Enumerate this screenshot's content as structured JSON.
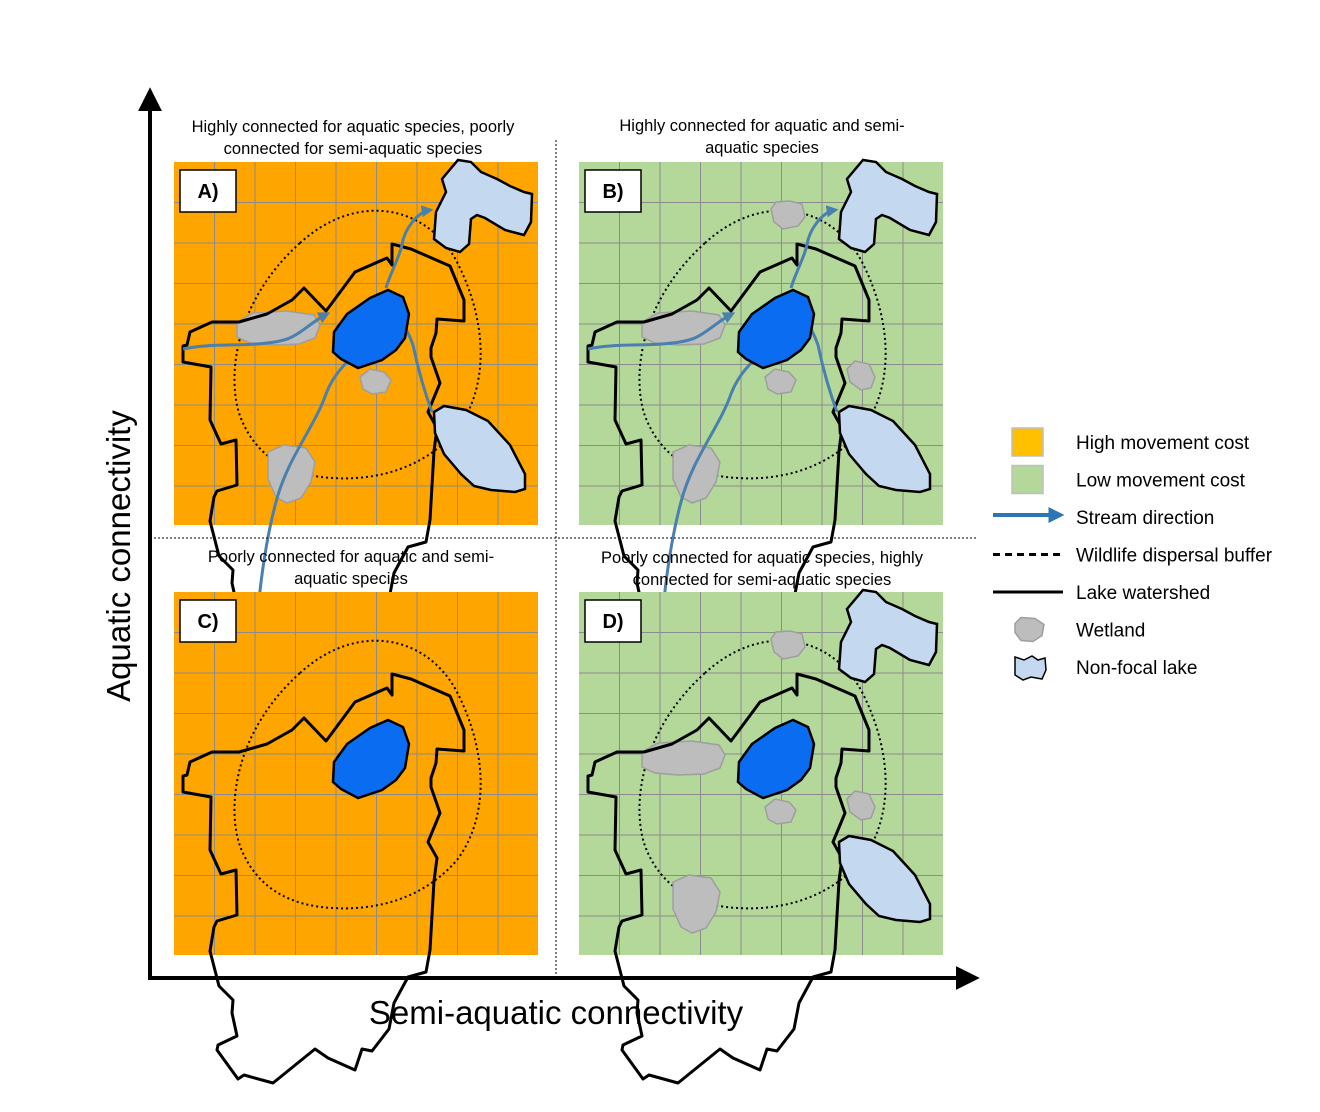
{
  "axes": {
    "y_label": "Aquatic connectivity",
    "x_label": "Semi-aquatic connectivity"
  },
  "panels": [
    {
      "id": "A",
      "letter": "A)",
      "title_lines": [
        "Highly connected for aquatic species, poorly",
        "connected for semi-aquatic species"
      ],
      "cost": "high",
      "streams": true,
      "semi_aquatic_extras": false
    },
    {
      "id": "B",
      "letter": "B)",
      "title_lines": [
        "Highly connected for aquatic and semi-",
        "aquatic species"
      ],
      "cost": "low",
      "streams": true,
      "semi_aquatic_extras": true
    },
    {
      "id": "C",
      "letter": "C)",
      "title_lines": [
        "Poorly connected for aquatic and semi-",
        "aquatic species"
      ],
      "cost": "high",
      "streams": false,
      "semi_aquatic_extras": false
    },
    {
      "id": "D",
      "letter": "D)",
      "title_lines": [
        "Poorly connected for aquatic species, highly",
        "connected for semi-aquatic species"
      ],
      "cost": "low",
      "streams": false,
      "semi_aquatic_extras": true
    }
  ],
  "legend": [
    {
      "key": "high",
      "label": "High movement cost"
    },
    {
      "key": "low",
      "label": "Low movement cost"
    },
    {
      "key": "stream",
      "label": "Stream direction"
    },
    {
      "key": "buffer",
      "label": "Wildlife dispersal buffer"
    },
    {
      "key": "watershed",
      "label": "Lake watershed"
    },
    {
      "key": "wetland",
      "label": "Wetland"
    },
    {
      "key": "lake",
      "label": "Non-focal lake"
    }
  ],
  "colors": {
    "high_cost": "#FFA500",
    "low_cost": "#B3D89A",
    "grid": "#8C8C8C",
    "stream": "#4A7FAF",
    "focal_lake": "#0A6CF0",
    "non_focal_lake": "#C4D9EF",
    "wetland": "#BDBDBD",
    "legend_high": "#FFC000"
  }
}
